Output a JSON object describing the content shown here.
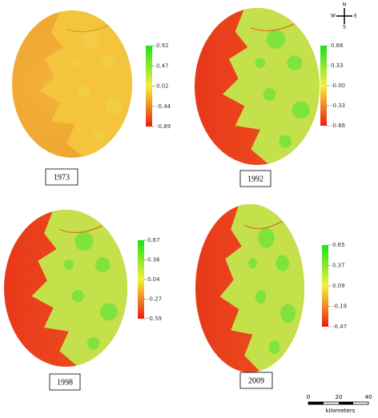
{
  "panels": [
    {
      "year": "1973",
      "colorbar": {
        "labels": [
          "0.92",
          "0.47",
          "0.02",
          "-0.44",
          "-0.89"
        ]
      }
    },
    {
      "year": "1992",
      "colorbar": {
        "labels": [
          "0.66",
          "0.33",
          "-0.00",
          "-0.33",
          "-0.66"
        ]
      }
    },
    {
      "year": "1998",
      "colorbar": {
        "labels": [
          "0.67",
          "0.36",
          "0.04",
          "-0.27",
          "-0.59"
        ]
      }
    },
    {
      "year": "2009",
      "colorbar": {
        "labels": [
          "0.65",
          "0.37",
          "0.09",
          "-0.19",
          "-0.47"
        ]
      }
    }
  ],
  "compass": {
    "north": "N",
    "east": "E",
    "south": "S",
    "west": "W"
  },
  "scale_bar": {
    "labels": [
      "0",
      "20",
      "40"
    ],
    "unit": "kilometers"
  }
}
